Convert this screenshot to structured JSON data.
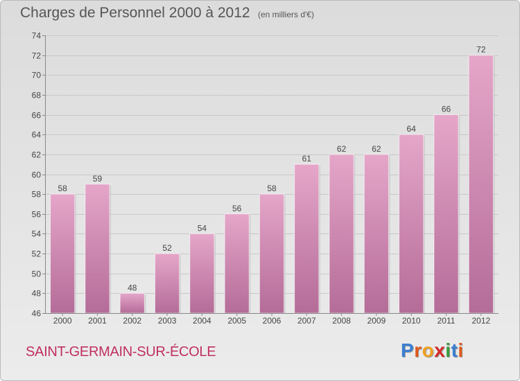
{
  "header": {
    "title": "Charges de Personnel 2000 à 2012",
    "unit_note": "(en milliers d'€)"
  },
  "footer": {
    "commune": "SAINT-GERMAIN-SUR-ÉCOLE",
    "logo_text": "Proxiti"
  },
  "colors": {
    "bar_top": "#e5a6c9",
    "bar_bottom": "#b46c98",
    "commune_text": "#c0305f",
    "logo_letters": [
      "#3a7ed0",
      "#e05a1e",
      "#f0a020",
      "#d42a2a",
      "#3a9a3a",
      "#3a7ed0",
      "#e05a1e"
    ]
  },
  "chart_data": {
    "type": "bar",
    "title": "Charges de Personnel 2000 à 2012",
    "subtitle": "(en milliers d'€)",
    "xlabel": "",
    "ylabel": "",
    "categories": [
      "2000",
      "2001",
      "2002",
      "2003",
      "2004",
      "2005",
      "2006",
      "2007",
      "2008",
      "2009",
      "2010",
      "2011",
      "2012"
    ],
    "values": [
      58,
      59,
      48,
      52,
      54,
      56,
      58,
      61,
      62,
      62,
      64,
      66,
      72
    ],
    "ylim": [
      46,
      74
    ],
    "yticks": [
      46,
      48,
      50,
      52,
      54,
      56,
      58,
      60,
      62,
      64,
      66,
      68,
      70,
      72,
      74
    ],
    "grid": true,
    "legend": "none"
  }
}
